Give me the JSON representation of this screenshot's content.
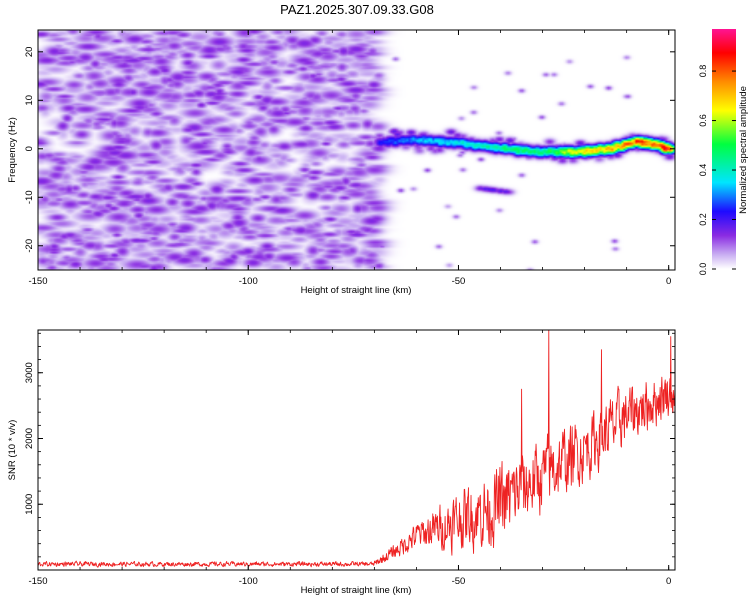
{
  "title": "PAZ1.2025.307.09.33.G08",
  "chart_data": [
    {
      "type": "heatmap",
      "title": "",
      "xlabel": "Height of straight line (km)",
      "ylabel": "Frequency (Hz)",
      "xlim": [
        -150,
        1.5
      ],
      "ylim": [
        -25,
        24.5
      ],
      "x_ticks": [
        -150,
        -100,
        -50,
        0
      ],
      "y_ticks": [
        -20,
        -10,
        0,
        10,
        20
      ],
      "colorbar": {
        "label": "Normalized spectral amplitude",
        "range": [
          0.0,
          0.97
        ],
        "ticks": [
          0.0,
          0.2,
          0.4,
          0.6,
          0.8
        ],
        "colors": [
          "#ffffff",
          "#c9aef2",
          "#8a2be2",
          "#1e0aff",
          "#00e5ff",
          "#00ff40",
          "#ffff00",
          "#ff8c00",
          "#ff0000",
          "#ff1493"
        ]
      },
      "features": {
        "noise_region_x": [
          -150,
          -69
        ],
        "noise_amplitude_max": 0.15,
        "signal_ridge": [
          {
            "x": -69,
            "freq": 1.5,
            "amp": 0.25
          },
          {
            "x": -60,
            "freq": 2.0,
            "amp": 0.35
          },
          {
            "x": -52,
            "freq": 1.5,
            "amp": 0.4
          },
          {
            "x": -45,
            "freq": 0.8,
            "amp": 0.45
          },
          {
            "x": -38,
            "freq": 0.0,
            "amp": 0.5
          },
          {
            "x": -30,
            "freq": -0.5,
            "amp": 0.5
          },
          {
            "x": -22,
            "freq": -0.5,
            "amp": 0.7
          },
          {
            "x": -15,
            "freq": 0.0,
            "amp": 0.75
          },
          {
            "x": -8,
            "freq": 1.5,
            "amp": 0.9
          },
          {
            "x": -4,
            "freq": 1.2,
            "amp": 0.85
          },
          {
            "x": 0,
            "freq": 0.0,
            "amp": 0.97
          }
        ],
        "secondary_ridge": [
          {
            "x": -45,
            "freq": -8.0,
            "amp": 0.2
          },
          {
            "x": -38,
            "freq": -8.8,
            "amp": 0.2
          }
        ]
      }
    },
    {
      "type": "line",
      "title": "",
      "xlabel": "Height of straight line (km)",
      "ylabel": "SNR (10 * v/v)",
      "xlim": [
        -150,
        1.5
      ],
      "ylim": [
        0,
        3650
      ],
      "x_ticks": [
        -150,
        -100,
        -50,
        0
      ],
      "y_ticks": [
        1000,
        2000,
        3000
      ],
      "series": [
        {
          "name": "SNR",
          "color": "#ee2222",
          "envelope": [
            {
              "x": -150,
              "mean": 90,
              "amp": 70
            },
            {
              "x": -70,
              "mean": 90,
              "amp": 70
            },
            {
              "x": -66,
              "mean": 250,
              "amp": 150
            },
            {
              "x": -60,
              "mean": 520,
              "amp": 300
            },
            {
              "x": -50,
              "mean": 750,
              "amp": 650
            },
            {
              "x": -40,
              "mean": 1000,
              "amp": 900
            },
            {
              "x": -30,
              "mean": 1450,
              "amp": 800
            },
            {
              "x": -20,
              "mean": 1850,
              "amp": 700
            },
            {
              "x": -10,
              "mean": 2350,
              "amp": 650
            },
            {
              "x": 0,
              "mean": 2700,
              "amp": 550
            },
            {
              "x": 1.5,
              "mean": 2600,
              "amp": 400
            }
          ],
          "peaks": [
            {
              "x": -28.5,
              "y": 3650
            },
            {
              "x": 0.5,
              "y": 3550
            },
            {
              "x": -16,
              "y": 3350
            },
            {
              "x": -35,
              "y": 2750
            }
          ]
        }
      ]
    }
  ]
}
